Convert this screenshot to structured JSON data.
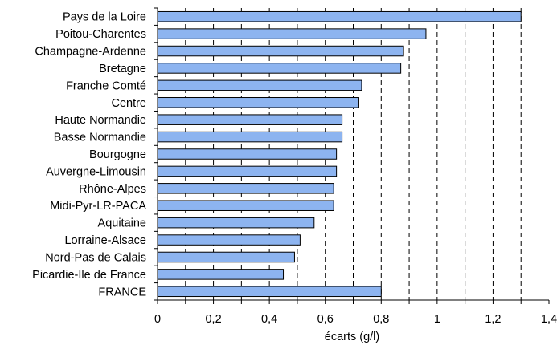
{
  "chart_data": {
    "type": "bar",
    "orientation": "horizontal",
    "title": "",
    "xlabel": "écarts (g/l)",
    "ylabel": "",
    "categories": [
      "Pays de la Loire",
      "Poitou-Charentes",
      "Champagne-Ardenne",
      "Bretagne",
      "Franche Comté",
      "Centre",
      "Haute Normandie",
      "Basse Normandie",
      "Bourgogne",
      "Auvergne-Limousin",
      "Rhône-Alpes",
      "Midi-Pyr-LR-PACA",
      "Aquitaine",
      "Lorraine-Alsace",
      "Nord-Pas de Calais",
      "Picardie-Ile de France",
      "FRANCE"
    ],
    "values": [
      1.3,
      0.96,
      0.88,
      0.87,
      0.73,
      0.72,
      0.66,
      0.66,
      0.64,
      0.64,
      0.63,
      0.63,
      0.56,
      0.51,
      0.49,
      0.45,
      0.8
    ],
    "xlim": [
      0,
      1.4
    ],
    "xticks": [
      "0",
      "0,2",
      "0,4",
      "0,6",
      "0,8",
      "1",
      "1,2",
      "1,4"
    ],
    "gridlines": [
      0.1,
      0.2,
      0.3,
      0.4,
      0.5,
      0.6,
      0.7,
      0.8,
      0.9,
      1.0,
      1.1,
      1.2,
      1.3
    ],
    "grid": "vertical dashed",
    "legend": "none",
    "colors": {
      "bar_fill": "#8db4f0",
      "bar_stroke": "#000000",
      "grid": "#000000",
      "axis": "#000000"
    }
  }
}
